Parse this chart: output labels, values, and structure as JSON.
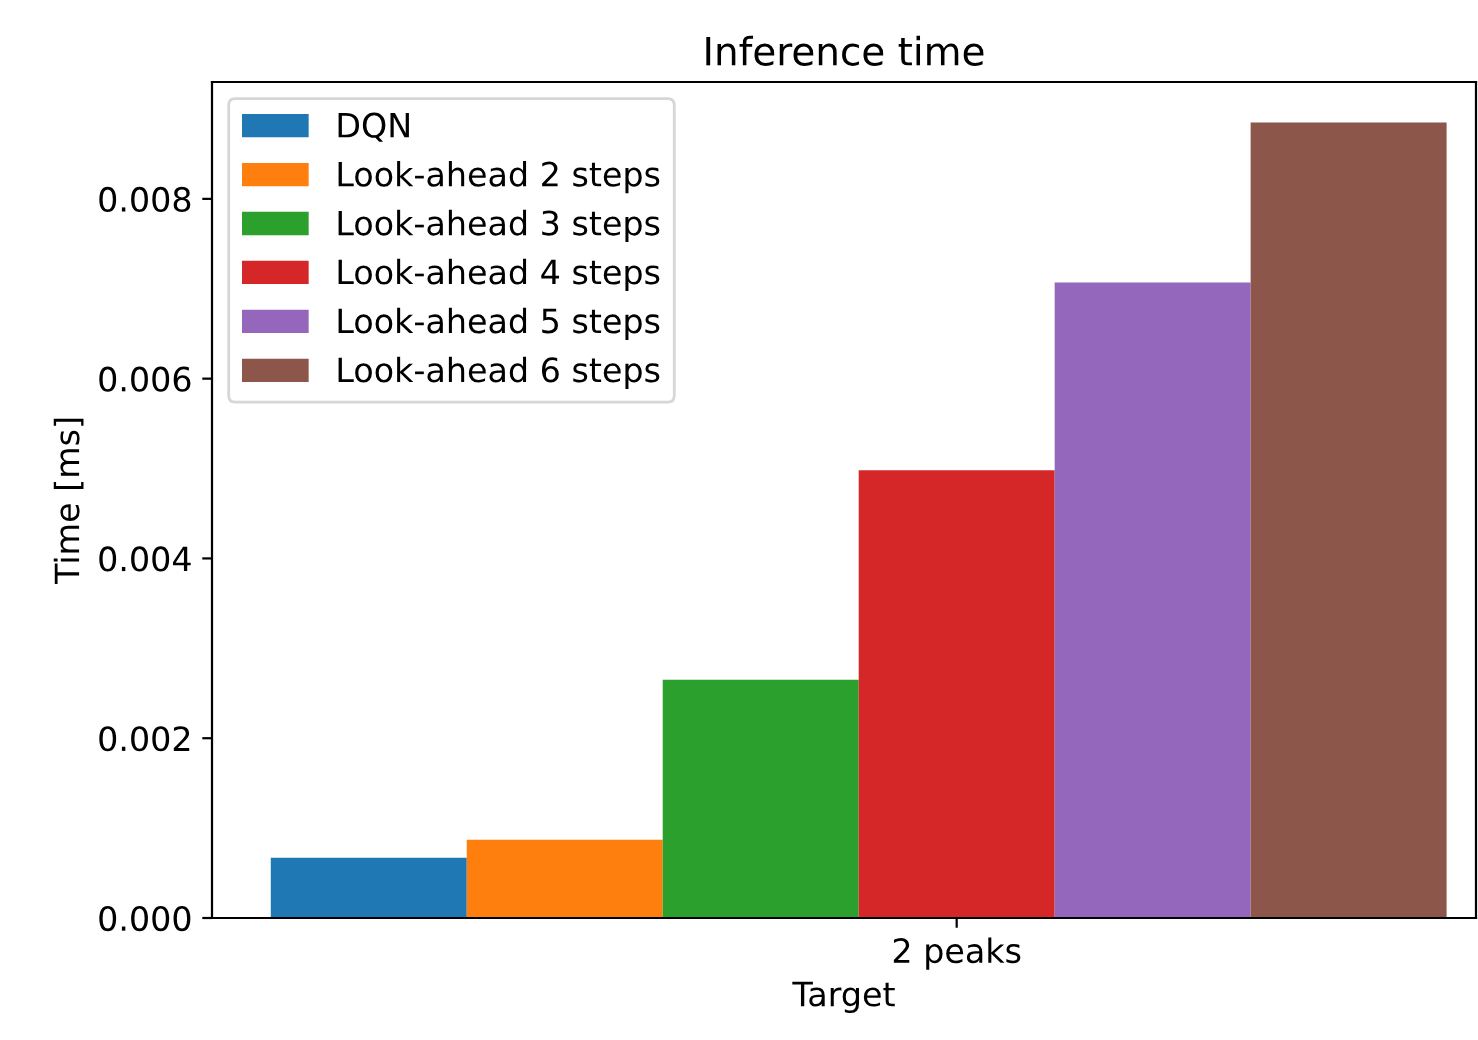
{
  "chart_data": {
    "type": "bar",
    "title": "Inference time",
    "xlabel": "Target",
    "ylabel": "Time [ms]",
    "categories": [
      "2 peaks"
    ],
    "series": [
      {
        "name": "DQN",
        "color": "#1f77b4",
        "values": [
          0.00067
        ]
      },
      {
        "name": "Look-ahead 2 steps",
        "color": "#ff7f0e",
        "values": [
          0.00087
        ]
      },
      {
        "name": "Look-ahead 3 steps",
        "color": "#2ca02c",
        "values": [
          0.00265
        ]
      },
      {
        "name": "Look-ahead 4 steps",
        "color": "#d62728",
        "values": [
          0.00498
        ]
      },
      {
        "name": "Look-ahead 5 steps",
        "color": "#9467bd",
        "values": [
          0.00707
        ]
      },
      {
        "name": "Look-ahead 6 steps",
        "color": "#8c564b",
        "values": [
          0.00885
        ]
      }
    ],
    "ylim": [
      0,
      0.0093
    ],
    "yticks": [
      {
        "value": 0,
        "label": "0.000"
      },
      0.002,
      0.004,
      0.006,
      0.008
    ],
    "legend": "top left",
    "grid": false
  }
}
